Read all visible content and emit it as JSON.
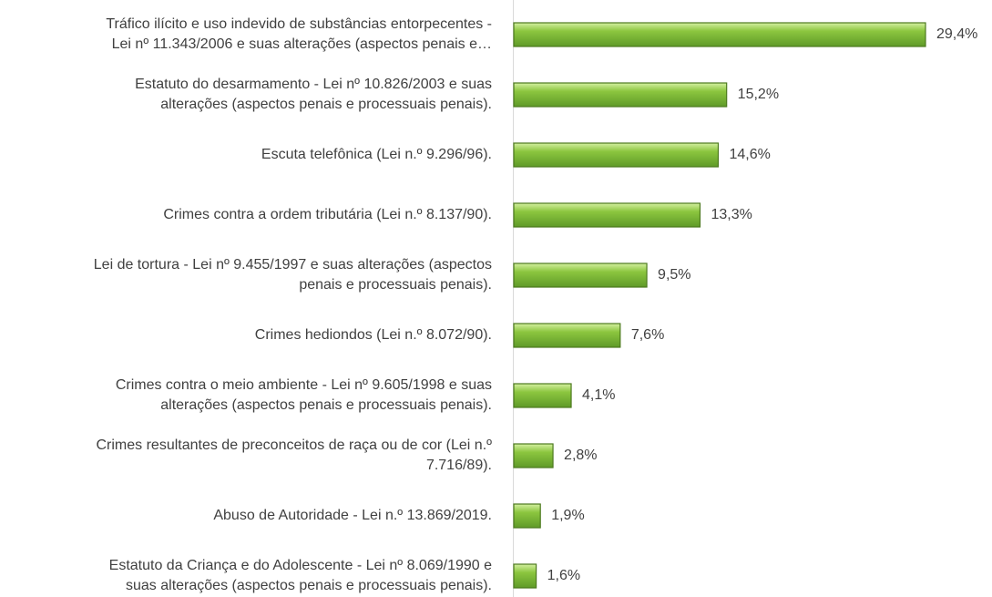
{
  "chart_data": {
    "type": "barh",
    "categories": [
      "Tráfico ilícito e uso indevido de substâncias entorpecentes -\nLei nº 11.343/2006 e suas alterações (aspectos penais e…",
      "Estatuto do desarmamento - Lei nº 10.826/2003 e suas\nalterações (aspectos penais e processuais penais).",
      "Escuta telefônica (Lei n.º 9.296/96).",
      "Crimes contra a ordem tributária (Lei n.º 8.137/90).",
      "Lei de tortura - Lei nº 9.455/1997 e suas alterações (aspectos\npenais e processuais penais).",
      "Crimes hediondos (Lei n.º 8.072/90).",
      "Crimes contra o meio ambiente - Lei nº 9.605/1998 e suas\nalterações (aspectos penais e processuais penais).",
      "Crimes resultantes de preconceitos de raça ou de cor (Lei n.º\n7.716/89).",
      "Abuso de Autoridade - Lei n.º 13.869/2019.",
      "Estatuto da Criança e do Adolescente - Lei nº 8.069/1990 e\nsuas alterações (aspectos penais e processuais penais)."
    ],
    "values": [
      29.4,
      15.2,
      14.6,
      13.3,
      9.5,
      7.6,
      4.1,
      2.8,
      1.9,
      1.6
    ],
    "value_labels": [
      "29,4%",
      "15,2%",
      "14,6%",
      "13,3%",
      "9,5%",
      "7,6%",
      "4,1%",
      "2,8%",
      "1,9%",
      "1,6%"
    ],
    "color": "#8cc63f"
  }
}
